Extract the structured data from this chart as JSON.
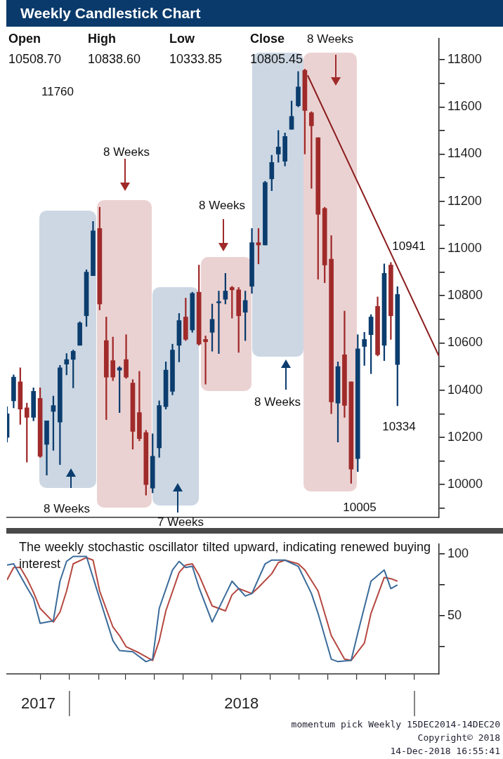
{
  "chart_data": [
    {
      "type": "candlestick",
      "title": "Weekly Candlestick Chart",
      "x": [
        "2017-10-27",
        "2017-11-03",
        "2017-11-10",
        "2017-11-17",
        "2017-11-24",
        "2017-12-01",
        "2017-12-08",
        "2017-12-15",
        "2017-12-22",
        "2017-12-29",
        "2018-01-05",
        "2018-01-12",
        "2018-01-19",
        "2018-01-26",
        "2018-02-02",
        "2018-02-09",
        "2018-02-16",
        "2018-02-23",
        "2018-03-02",
        "2018-03-09",
        "2018-03-16",
        "2018-03-23",
        "2018-03-30",
        "2018-04-06",
        "2018-04-13",
        "2018-04-20",
        "2018-04-27",
        "2018-05-04",
        "2018-05-11",
        "2018-05-18",
        "2018-05-25",
        "2018-06-01",
        "2018-06-08",
        "2018-06-15",
        "2018-06-22",
        "2018-06-29",
        "2018-07-06",
        "2018-07-13",
        "2018-07-20",
        "2018-07-27",
        "2018-08-03",
        "2018-08-10",
        "2018-08-17",
        "2018-08-24",
        "2018-08-31",
        "2018-09-07",
        "2018-09-14",
        "2018-09-21",
        "2018-09-28",
        "2018-10-05",
        "2018-10-12",
        "2018-10-19",
        "2018-10-26",
        "2018-11-02",
        "2018-11-09",
        "2018-11-16",
        "2018-11-23",
        "2018-11-30",
        "2018-12-07",
        "2018-12-14"
      ],
      "ohlc": [
        [
          10200,
          10330,
          10180,
          10300
        ],
        [
          10355,
          10465,
          10325,
          10455
        ],
        [
          10435,
          10495,
          10255,
          10320
        ],
        [
          10325,
          10345,
          10095,
          10285
        ],
        [
          10285,
          10410,
          10270,
          10395
        ],
        [
          10365,
          10410,
          10115,
          10120
        ],
        [
          10170,
          10270,
          10040,
          10270
        ],
        [
          10310,
          10375,
          10145,
          10335
        ],
        [
          10265,
          10505,
          10085,
          10495
        ],
        [
          10510,
          10555,
          10465,
          10530
        ],
        [
          10530,
          10570,
          10410,
          10565
        ],
        [
          10590,
          10690,
          10590,
          10685
        ],
        [
          10715,
          10910,
          10670,
          10900
        ],
        [
          10885,
          11115,
          10885,
          11075
        ],
        [
          11085,
          11175,
          10740,
          10765
        ],
        [
          10610,
          10710,
          10275,
          10455
        ],
        [
          10525,
          10625,
          10440,
          10455
        ],
        [
          10485,
          10500,
          10305,
          10495
        ],
        [
          10530,
          10635,
          10450,
          10455
        ],
        [
          10430,
          10445,
          10150,
          10225
        ],
        [
          10305,
          10480,
          10185,
          10195
        ],
        [
          10220,
          10230,
          9955,
          10000
        ],
        [
          9985,
          10215,
          9965,
          10120
        ],
        [
          10155,
          10355,
          10115,
          10335
        ],
        [
          10330,
          10520,
          10320,
          10485
        ],
        [
          10395,
          10595,
          10380,
          10570
        ],
        [
          10590,
          10725,
          10520,
          10695
        ],
        [
          10710,
          10790,
          10610,
          10615
        ],
        [
          10655,
          10815,
          10645,
          10810
        ],
        [
          10815,
          10930,
          10590,
          10595
        ],
        [
          10615,
          10630,
          10425,
          10605
        ],
        [
          10645,
          10765,
          10565,
          10700
        ],
        [
          10770,
          10820,
          10555,
          10775
        ],
        [
          10785,
          10895,
          10765,
          10820
        ],
        [
          10835,
          10840,
          10705,
          10825
        ],
        [
          10825,
          10835,
          10560,
          10715
        ],
        [
          10730,
          10820,
          10610,
          10780
        ],
        [
          10840,
          11085,
          10810,
          11025
        ],
        [
          11025,
          11085,
          10935,
          11015
        ],
        [
          11015,
          11285,
          11015,
          11280
        ],
        [
          11295,
          11395,
          11245,
          11365
        ],
        [
          11400,
          11500,
          11365,
          11430
        ],
        [
          11370,
          11490,
          11350,
          11475
        ],
        [
          11505,
          11625,
          11505,
          11560
        ],
        [
          11605,
          11750,
          11600,
          11685
        ],
        [
          11755,
          11760,
          11400,
          11585
        ],
        [
          11575,
          11580,
          11255,
          11520
        ],
        [
          11470,
          11470,
          10870,
          11145
        ],
        [
          11170,
          11175,
          10855,
          10930
        ],
        [
          10955,
          11055,
          10300,
          10350
        ],
        [
          10345,
          10520,
          10180,
          10500
        ],
        [
          10550,
          10735,
          10285,
          10335
        ],
        [
          10435,
          10435,
          10005,
          10065
        ],
        [
          10110,
          10635,
          10055,
          10575
        ],
        [
          10585,
          10645,
          10505,
          10615
        ],
        [
          10635,
          10720,
          10470,
          10710
        ],
        [
          10755,
          10795,
          10545,
          10550
        ],
        [
          10590,
          10935,
          10525,
          10895
        ],
        [
          10930,
          10941,
          10615,
          10715
        ],
        [
          10508.7,
          10838.6,
          10333.85,
          10805.45
        ]
      ],
      "colors": [
        "#0b3d6e",
        "#0b3d6e",
        "#a02a2a",
        "#a02a2a",
        "#0b3d6e",
        "#a02a2a",
        "#0b3d6e",
        "#0b3d6e",
        "#0b3d6e",
        "#0b3d6e",
        "#0b3d6e",
        "#0b3d6e",
        "#0b3d6e",
        "#0b3d6e",
        "#a02a2a",
        "#a02a2a",
        "#a02a2a",
        "#0b3d6e",
        "#a02a2a",
        "#a02a2a",
        "#a02a2a",
        "#a02a2a",
        "#0b3d6e",
        "#0b3d6e",
        "#0b3d6e",
        "#0b3d6e",
        "#0b3d6e",
        "#a02a2a",
        "#0b3d6e",
        "#a02a2a",
        "#a02a2a",
        "#0b3d6e",
        "#0b3d6e",
        "#0b3d6e",
        "#a02a2a",
        "#a02a2a",
        "#0b3d6e",
        "#0b3d6e",
        "#a02a2a",
        "#0b3d6e",
        "#0b3d6e",
        "#0b3d6e",
        "#0b3d6e",
        "#0b3d6e",
        "#0b3d6e",
        "#a02a2a",
        "#a02a2a",
        "#a02a2a",
        "#a02a2a",
        "#a02a2a",
        "#0b3d6e",
        "#a02a2a",
        "#a02a2a",
        "#0b3d6e",
        "#0b3d6e",
        "#0b3d6e",
        "#a02a2a",
        "#0b3d6e",
        "#a02a2a",
        "#0b3d6e"
      ],
      "series": [
        {
          "type": "line",
          "color": "#8b1c1c",
          "x": [
            "2018-09-10",
            "2019-01-27"
          ],
          "values": [
            11734,
            10543
          ]
        }
      ],
      "xlim": [
        "2017-10-27",
        "2019-01-27"
      ],
      "ylim": [
        9860,
        11890
      ],
      "yticks": [
        {
          "value": 9900,
          "label": null
        },
        10000,
        {
          "value": 10100,
          "label": null
        },
        10200,
        {
          "value": 10300,
          "label": null
        },
        10400,
        {
          "value": 10500,
          "label": null
        },
        10600,
        {
          "value": 10700,
          "label": null
        },
        10800,
        {
          "value": 10900,
          "label": null
        },
        11000,
        {
          "value": 11100,
          "label": null
        },
        11200,
        {
          "value": 11300,
          "label": null
        },
        11400,
        {
          "value": 11500,
          "label": null
        },
        11600,
        {
          "value": 11700,
          "label": null
        },
        11800
      ],
      "tick_labels": "y",
      "annotations": [
        "Open",
        "High",
        "Low",
        "Close",
        "10508.70",
        "10838.60",
        "10333.85",
        "10805.45",
        "8 Weeks",
        "8 Weeks",
        "8 Weeks",
        "8 Weeks",
        "8 Weeks",
        "7 Weeks",
        "11760",
        "10941",
        "10334",
        "10005"
      ]
    },
    {
      "type": "line",
      "series": [
        {
          "color": "#3a6b9a",
          "x": [
            "2017-10-27",
            "2017-11-03",
            "2017-11-17",
            "2017-11-24",
            "2017-12-01",
            "2017-12-15",
            "2017-12-22",
            "2017-12-29",
            "2018-01-05",
            "2018-01-19",
            "2018-02-16",
            "2018-02-23",
            "2018-03-09",
            "2018-03-23",
            "2018-03-30",
            "2018-04-06",
            "2018-04-20",
            "2018-04-27",
            "2018-05-04",
            "2018-05-11",
            "2018-05-18",
            "2018-06-01",
            "2018-06-15",
            "2018-06-22",
            "2018-07-06",
            "2018-07-13",
            "2018-07-27",
            "2018-08-03",
            "2018-08-17",
            "2018-08-31",
            "2018-09-14",
            "2018-09-21",
            "2018-10-05",
            "2018-10-12",
            "2018-10-26",
            "2018-11-02",
            "2018-11-16",
            "2018-11-30",
            "2018-12-07",
            "2018-12-14"
          ],
          "values": [
            91,
            92,
            73,
            64,
            44,
            46,
            78,
            94,
            98,
            98,
            30,
            22,
            21,
            13,
            15,
            56,
            87,
            94,
            89,
            90,
            73,
            45,
            67,
            78,
            66,
            68,
            92,
            95,
            95,
            90,
            68,
            52,
            15,
            13,
            14,
            36,
            78,
            87,
            72,
            75
          ]
        },
        {
          "color": "#b5473f",
          "x": [
            "2017-10-27",
            "2017-11-03",
            "2017-11-10",
            "2017-11-17",
            "2017-11-24",
            "2017-12-01",
            "2017-12-15",
            "2017-12-22",
            "2017-12-29",
            "2018-01-05",
            "2018-01-19",
            "2018-01-26",
            "2018-02-02",
            "2018-02-16",
            "2018-02-23",
            "2018-03-02",
            "2018-03-16",
            "2018-03-30",
            "2018-04-06",
            "2018-04-13",
            "2018-04-27",
            "2018-05-04",
            "2018-05-11",
            "2018-05-18",
            "2018-06-01",
            "2018-06-15",
            "2018-06-22",
            "2018-06-29",
            "2018-07-13",
            "2018-07-20",
            "2018-08-03",
            "2018-08-10",
            "2018-08-17",
            "2018-08-31",
            "2018-09-07",
            "2018-09-21",
            "2018-10-05",
            "2018-10-19",
            "2018-10-26",
            "2018-11-09",
            "2018-11-16",
            "2018-11-30",
            "2018-12-07",
            "2018-12-14"
          ],
          "values": [
            79,
            89,
            89,
            80,
            69,
            56,
            45,
            53,
            70,
            92,
            97,
            95,
            70,
            41,
            34,
            25,
            20,
            14,
            30,
            54,
            85,
            91,
            92,
            83,
            58,
            54,
            67,
            72,
            68,
            73,
            84,
            93,
            95,
            92,
            87,
            70,
            34,
            15,
            14,
            28,
            52,
            81,
            80,
            78
          ]
        }
      ],
      "xlim": [
        "2017-10-27",
        "2019-01-27"
      ],
      "xticks": [
        {
          "value": "2017-11-29",
          "label": "2017"
        },
        {
          "value": "2018-07-02",
          "label": "2018"
        },
        {
          "value": "2017-12-01",
          "label": null
        },
        {
          "value": "2018-01-01",
          "label": null
        },
        {
          "value": "2018-02-01",
          "label": null
        },
        {
          "value": "2018-03-01",
          "label": null
        },
        {
          "value": "2018-04-01",
          "label": null
        },
        {
          "value": "2018-05-01",
          "label": null
        },
        {
          "value": "2018-06-01",
          "label": null
        },
        {
          "value": "2018-07-01",
          "label": null
        },
        {
          "value": "2018-08-01",
          "label": null
        },
        {
          "value": "2018-09-01",
          "label": null
        },
        {
          "value": "2018-10-01",
          "label": null
        },
        {
          "value": "2018-11-01",
          "label": null
        },
        {
          "value": "2018-12-01",
          "label": null
        },
        {
          "value": "2019-01-01",
          "label": null
        }
      ],
      "ylim": [
        3,
        108
      ],
      "yticks": [
        {
          "value": 25,
          "label": null
        },
        50,
        {
          "value": 75,
          "label": null
        },
        100
      ],
      "annotations": [
        "The weekly stochastic oscillator tilted upward, indicating renewed buying interest",
        "momentum pick  Weekly 15DEC2014-14DEC20",
        "Copyright© 2018",
        "14-Dec-2018 16:55:41"
      ]
    }
  ]
}
